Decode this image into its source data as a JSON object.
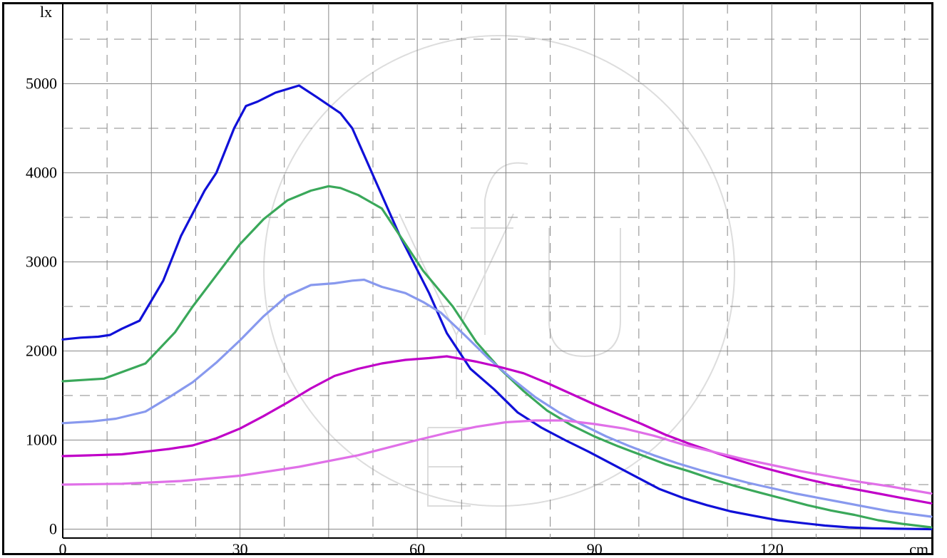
{
  "chart_data": {
    "type": "line",
    "xlabel": "cm",
    "ylabel": "lx",
    "xlim": [
      0,
      147
    ],
    "ylim": [
      -100,
      5900
    ],
    "x_ticks": [
      0,
      30,
      60,
      90,
      120
    ],
    "y_ticks": [
      0,
      1000,
      2000,
      3000,
      4000,
      5000
    ],
    "grid": true,
    "series": [
      {
        "color": "#1010d8",
        "x": [
          0,
          3,
          6,
          8,
          10,
          13,
          17,
          20,
          24,
          26,
          29,
          31,
          33,
          36,
          40,
          43,
          47,
          49,
          53,
          57,
          62,
          65,
          69,
          73,
          77,
          81,
          85,
          89,
          93,
          97,
          101,
          105,
          109,
          113,
          117,
          121,
          125,
          129,
          133,
          137,
          141,
          147
        ],
        "values": [
          2130,
          2150,
          2160,
          2180,
          2250,
          2340,
          2790,
          3290,
          3800,
          4000,
          4500,
          4750,
          4800,
          4900,
          4980,
          4850,
          4670,
          4500,
          3900,
          3300,
          2650,
          2200,
          1800,
          1570,
          1310,
          1140,
          1000,
          870,
          730,
          590,
          450,
          350,
          270,
          200,
          150,
          100,
          70,
          40,
          20,
          10,
          5,
          0
        ]
      },
      {
        "color": "#3aa85a",
        "x": [
          0,
          7,
          14,
          19,
          22,
          26,
          30,
          34,
          38,
          42,
          45,
          47,
          50,
          54,
          58,
          61,
          66,
          70,
          74,
          78,
          82,
          86,
          90,
          94,
          98,
          102,
          106,
          110,
          114,
          118,
          122,
          126,
          130,
          134,
          138,
          142,
          147
        ],
        "values": [
          1660,
          1690,
          1860,
          2210,
          2500,
          2850,
          3200,
          3480,
          3690,
          3800,
          3850,
          3830,
          3750,
          3600,
          3200,
          2900,
          2500,
          2100,
          1800,
          1550,
          1330,
          1170,
          1040,
          930,
          830,
          730,
          650,
          560,
          480,
          410,
          340,
          270,
          210,
          160,
          100,
          60,
          20
        ]
      },
      {
        "color": "#8899ee",
        "x": [
          0,
          5,
          9,
          14,
          18,
          22,
          26,
          30,
          34,
          38,
          42,
          46,
          49,
          51,
          54,
          58,
          61,
          64,
          68,
          72,
          76,
          80,
          84,
          88,
          92,
          96,
          100,
          104,
          108,
          112,
          116,
          120,
          124,
          128,
          132,
          136,
          140,
          147
        ],
        "values": [
          1190,
          1210,
          1240,
          1320,
          1480,
          1650,
          1870,
          2120,
          2390,
          2620,
          2740,
          2760,
          2790,
          2800,
          2720,
          2650,
          2550,
          2430,
          2180,
          1920,
          1690,
          1480,
          1310,
          1170,
          1040,
          930,
          830,
          740,
          660,
          590,
          520,
          460,
          400,
          350,
          300,
          250,
          200,
          140
        ]
      },
      {
        "color": "#c000c8",
        "x": [
          0,
          5,
          10,
          14,
          18,
          22,
          26,
          30,
          34,
          38,
          42,
          46,
          50,
          54,
          58,
          62,
          65,
          70,
          74,
          78,
          82,
          86,
          90,
          94,
          98,
          102,
          106,
          110,
          114,
          118,
          122,
          126,
          130,
          134,
          138,
          142,
          147
        ],
        "values": [
          820,
          830,
          840,
          870,
          900,
          940,
          1020,
          1130,
          1270,
          1420,
          1580,
          1720,
          1800,
          1860,
          1900,
          1920,
          1940,
          1880,
          1820,
          1750,
          1640,
          1520,
          1400,
          1290,
          1180,
          1060,
          960,
          870,
          780,
          700,
          630,
          560,
          500,
          450,
          400,
          350,
          290
        ]
      },
      {
        "color": "#e070e8",
        "x": [
          0,
          10,
          20,
          30,
          40,
          50,
          60,
          65,
          70,
          75,
          80,
          85,
          90,
          95,
          100,
          105,
          110,
          115,
          120,
          125,
          130,
          135,
          140,
          147
        ],
        "values": [
          500,
          510,
          540,
          600,
          700,
          830,
          1000,
          1080,
          1150,
          1200,
          1220,
          1220,
          1180,
          1130,
          1050,
          950,
          870,
          790,
          720,
          650,
          590,
          530,
          480,
          400
        ]
      }
    ]
  }
}
